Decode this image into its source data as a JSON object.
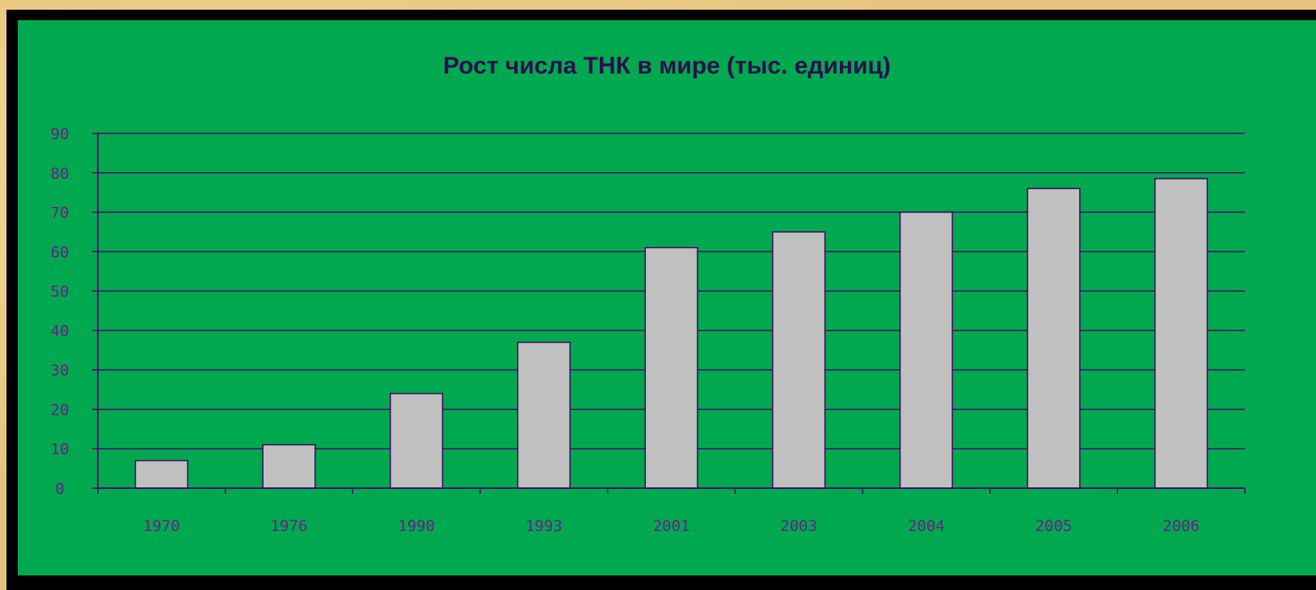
{
  "colors": {
    "page_background": "#e8c47a",
    "frame": "#000000",
    "plot_background": "#00a850",
    "bar_fill": "#c0c0c0",
    "bar_stroke": "#3a0a5a",
    "grid": "#4b0a6e",
    "tick_text": "#6a1f8a",
    "title_text": "#2d0e4f"
  },
  "chart_data": {
    "type": "bar",
    "title": "Рост числа ТНК в мире (тыс. единиц)",
    "xlabel": "",
    "ylabel": "",
    "categories": [
      "1970",
      "1976",
      "1990",
      "1993",
      "2001",
      "2003",
      "2004",
      "2005",
      "2006"
    ],
    "values": [
      7,
      11,
      24,
      37,
      61,
      65,
      70,
      76,
      78.5
    ],
    "ylim": [
      0,
      90
    ],
    "yticks": [
      0,
      10,
      20,
      30,
      40,
      50,
      60,
      70,
      80,
      90
    ],
    "grid": true,
    "legend": "none"
  }
}
